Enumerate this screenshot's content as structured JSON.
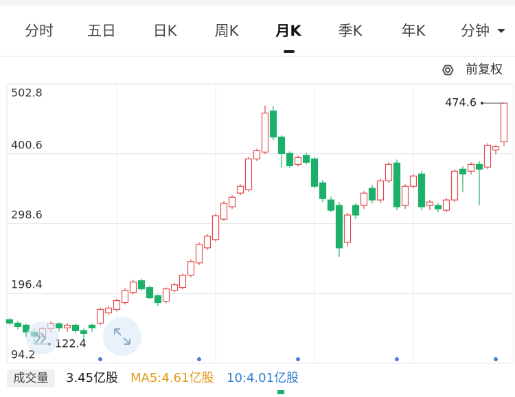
{
  "tabs": [
    "分时",
    "五日",
    "日K",
    "周K",
    "月K",
    "季K",
    "年K",
    "分钟"
  ],
  "adjust": "前复权",
  "chart_data": {
    "type": "candlestick",
    "open": [
      158,
      153,
      150,
      140,
      134,
      145,
      152,
      146,
      150,
      142,
      150,
      153,
      168,
      173,
      183,
      198,
      215,
      205,
      193,
      185,
      201,
      205,
      223,
      241,
      263,
      275,
      305,
      323,
      343,
      348,
      393,
      403,
      463,
      425,
      401,
      385,
      398,
      393,
      358,
      333,
      325,
      271,
      325,
      325,
      350,
      333,
      361,
      387,
      325,
      353,
      371,
      325,
      325,
      318,
      333,
      378,
      375,
      385,
      381,
      406,
      418
    ],
    "high": [
      160,
      156,
      152,
      146,
      148,
      156,
      154,
      153,
      152,
      145,
      152,
      176,
      178,
      189,
      204,
      216,
      218,
      208,
      195,
      205,
      212,
      226,
      246,
      271,
      283,
      313,
      331,
      340,
      356,
      396,
      408,
      471,
      470,
      428,
      404,
      398,
      402,
      396,
      362,
      338,
      330,
      314,
      328,
      346,
      355,
      364,
      388,
      392,
      356,
      371,
      375,
      333,
      328,
      336,
      378,
      382,
      388,
      390,
      416,
      413,
      474.6
    ],
    "low": [
      150,
      144,
      132,
      122.4,
      131,
      140,
      141,
      140,
      138,
      130,
      140,
      150,
      165,
      170,
      180,
      195,
      200,
      188,
      178,
      182,
      198,
      202,
      220,
      238,
      260,
      272,
      302,
      320,
      340,
      345,
      390,
      400,
      420,
      380,
      380,
      382,
      385,
      350,
      330,
      315,
      250,
      265,
      305,
      320,
      328,
      328,
      358,
      318,
      320,
      350,
      318,
      318,
      315,
      315,
      330,
      345,
      370,
      325,
      378,
      400,
      412
    ],
    "close": [
      153,
      148,
      140,
      134,
      145,
      152,
      146,
      150,
      142,
      138,
      146,
      173,
      175,
      186,
      201,
      213,
      203,
      190,
      183,
      203,
      209,
      223,
      243,
      268,
      280,
      310,
      328,
      337,
      353,
      393,
      405,
      460,
      425,
      401,
      383,
      395,
      388,
      353,
      335,
      318,
      263,
      311,
      311,
      343,
      333,
      361,
      385,
      323,
      353,
      368,
      323,
      330,
      320,
      333,
      375,
      371,
      385,
      378,
      413,
      411,
      474.6
    ],
    "ylim": [
      94.2,
      502.8
    ],
    "yticks": [
      94.2,
      196.4,
      298.6,
      400.6,
      502.8
    ],
    "up_color": "#e14b4b",
    "down_color": "#1db06a",
    "max_label": 474.6,
    "min_label": 122.4,
    "grid": true
  },
  "volume": {
    "label": "成交量",
    "value": "3.45亿股",
    "ma5": "MA5:4.61亿股",
    "ma10": "10:4.01亿股"
  }
}
